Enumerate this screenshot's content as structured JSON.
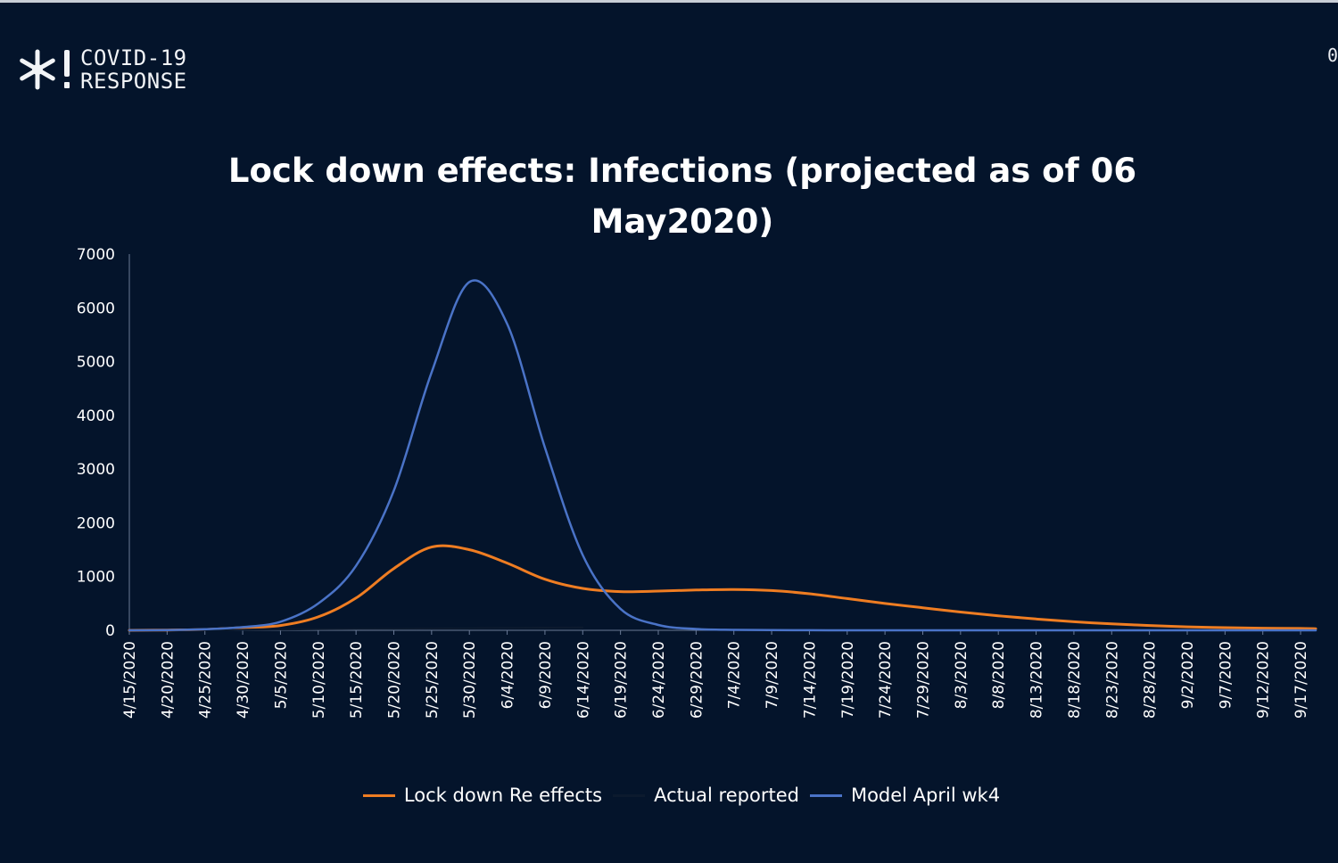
{
  "brand": {
    "line1": "COVID-19",
    "line2": "RESPONSE",
    "logo_icon": "snowflake-exclamation-icon"
  },
  "page_number": "0",
  "colors": {
    "background": "#04142b",
    "lockdown": "#ef7d22",
    "actual": "#0c1a2e",
    "model": "#4a73c7",
    "axis": "#6a7a96",
    "text": "#ffffff"
  },
  "chart_data": {
    "type": "line",
    "title_line1": "Lock down effects: Infections (projected as of 06",
    "title_line2": "May2020)",
    "xlabel": "",
    "ylabel": "",
    "ylim": [
      0,
      7000
    ],
    "yticks": [
      0,
      1000,
      2000,
      3000,
      4000,
      5000,
      6000,
      7000
    ],
    "xticks": [
      "4/15/2020",
      "4/20/2020",
      "4/25/2020",
      "4/30/2020",
      "5/5/2020",
      "5/10/2020",
      "5/15/2020",
      "5/20/2020",
      "5/25/2020",
      "5/30/2020",
      "6/4/2020",
      "6/9/2020",
      "6/14/2020",
      "6/19/2020",
      "6/24/2020",
      "6/29/2020",
      "7/4/2020",
      "7/9/2020",
      "7/14/2020",
      "7/19/2020",
      "7/24/2020",
      "7/29/2020",
      "8/3/2020",
      "8/8/2020",
      "8/13/2020",
      "8/18/2020",
      "8/23/2020",
      "8/28/2020",
      "9/2/2020",
      "9/7/2020",
      "9/12/2020",
      "9/17/2020"
    ],
    "x_day_offsets": [
      0,
      5,
      10,
      15,
      20,
      25,
      30,
      35,
      40,
      45,
      50,
      55,
      60,
      65,
      70,
      75,
      80,
      85,
      90,
      95,
      100,
      105,
      110,
      115,
      120,
      125,
      130,
      135,
      140,
      145,
      150,
      155,
      157
    ],
    "legend": [
      "Lock down Re effects",
      "Actual reported",
      "Model April wk4"
    ],
    "series": [
      {
        "name": "Lock down Re effects",
        "values": [
          0,
          5,
          15,
          50,
          90,
          250,
          600,
          1150,
          1550,
          1500,
          1250,
          950,
          780,
          720,
          730,
          750,
          760,
          740,
          680,
          590,
          500,
          420,
          340,
          270,
          210,
          160,
          120,
          90,
          65,
          50,
          40,
          35,
          30
        ]
      },
      {
        "name": "Actual reported",
        "values": [
          0,
          2,
          5,
          10,
          15,
          20,
          25,
          30,
          35,
          40,
          45,
          50,
          55
        ]
      },
      {
        "name": "Model April wk4",
        "values": [
          0,
          5,
          20,
          60,
          160,
          500,
          1200,
          2600,
          4800,
          6480,
          5700,
          3400,
          1400,
          400,
          100,
          25,
          8,
          3,
          1,
          0,
          0,
          0,
          0,
          0,
          0,
          0,
          0,
          0,
          0,
          0,
          0,
          0,
          0
        ]
      }
    ]
  }
}
